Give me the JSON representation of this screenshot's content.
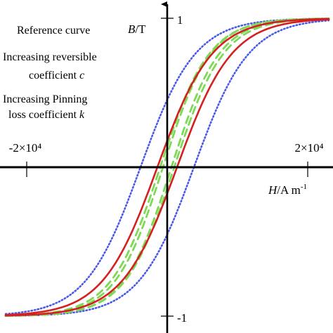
{
  "chart_data": {
    "type": "line",
    "title": "",
    "xlabel": "H/A m⁻¹",
    "ylabel": "B/T",
    "xlim": [
      -2.3,
      2.3
    ],
    "ylim": [
      -1.1,
      1.1
    ],
    "x_unit_note": "×10⁴",
    "x_ticks": [
      {
        "value": -2,
        "label": "-2×10⁴"
      },
      {
        "value": 2,
        "label": "2×10⁴"
      }
    ],
    "y_ticks": [
      {
        "value": 1,
        "label": "1"
      },
      {
        "value": -1,
        "label": "-1"
      }
    ],
    "grid": false,
    "legend": {
      "placement": "top-left",
      "entries": [
        {
          "text": "Reference curve"
        },
        {
          "lines": [
            "Increasing reversible",
            "coefficient "
          ],
          "italic_suffix": "c"
        },
        {
          "lines": [
            "Increasing Pinning",
            "loss coefficient "
          ],
          "italic_suffix": "k"
        }
      ]
    },
    "series": [
      {
        "name": "Reference curve",
        "color": "#d42020",
        "style": "solid",
        "loops": [
          {
            "coercivity": 0.14,
            "width": 0.78
          }
        ]
      },
      {
        "name": "Increasing reversible coefficient c",
        "color": "#7ed957",
        "style": "dashed",
        "loops": [
          {
            "coercivity": 0.1,
            "width": 0.7
          },
          {
            "coercivity": 0.06,
            "width": 0.68
          }
        ]
      },
      {
        "name": "Increasing Pinning loss coefficient k",
        "color": "#4a5ae8",
        "style": "dotted",
        "loops": [
          {
            "coercivity": 0.38,
            "width": 0.78
          }
        ]
      }
    ]
  }
}
